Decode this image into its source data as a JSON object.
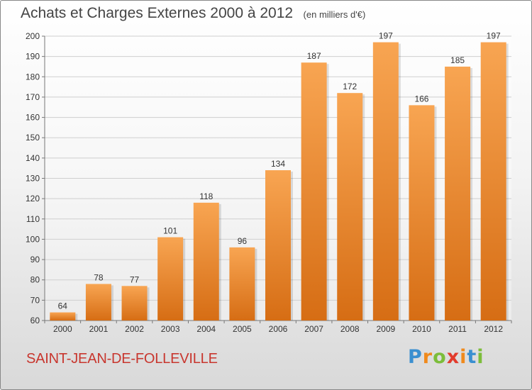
{
  "chart_data": {
    "type": "bar",
    "title": "Achats et Charges Externes 2000 à 2012",
    "subtitle": "(en milliers d'€)",
    "categories": [
      "2000",
      "2001",
      "2002",
      "2003",
      "2004",
      "2005",
      "2006",
      "2007",
      "2008",
      "2009",
      "2010",
      "2011",
      "2012"
    ],
    "values": [
      64,
      78,
      77,
      101,
      118,
      96,
      134,
      187,
      172,
      197,
      166,
      185,
      197
    ],
    "ylim": [
      60,
      200
    ],
    "yticks": [
      60,
      70,
      80,
      90,
      100,
      110,
      120,
      130,
      140,
      150,
      160,
      170,
      180,
      190,
      200
    ],
    "xlabel": "",
    "ylabel": "",
    "grid": true,
    "bar_color_light": "#f8a552",
    "bar_color_dark": "#d66d14"
  },
  "place_name": "SAINT-JEAN-DE-FOLLEVILLE",
  "brand": {
    "letters": [
      "P",
      "r",
      "o",
      "x",
      "i",
      "t",
      "i"
    ],
    "colors": [
      "#3a8fd0",
      "#f08a1c",
      "#7cbd3a",
      "#e23b2c",
      "#f08a1c",
      "#3a8fd0",
      "#7cbd3a"
    ]
  },
  "colors": {
    "place": "#c8362e",
    "title": "#444444"
  }
}
